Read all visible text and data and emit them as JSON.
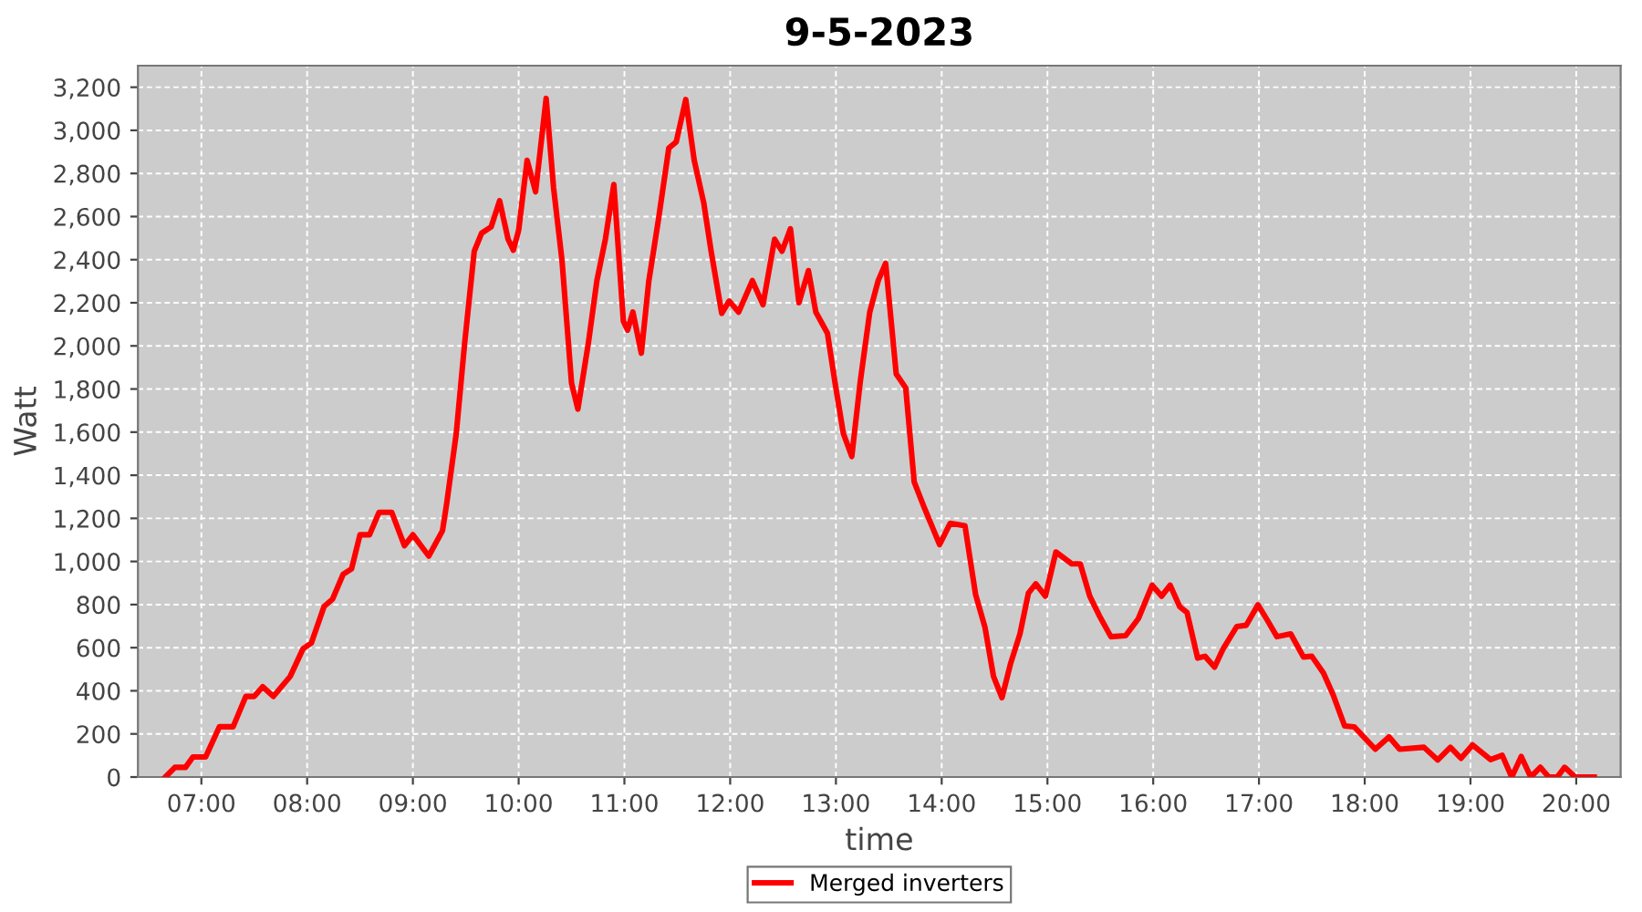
{
  "chart_data": {
    "type": "line",
    "title": "9-5-2023",
    "xlabel": "time",
    "ylabel": "Watt",
    "xlim": [
      6.4,
      20.42
    ],
    "ylim": [
      0,
      3300
    ],
    "xticks": [
      {
        "value": 7,
        "label": "07:00"
      },
      {
        "value": 8,
        "label": "08:00"
      },
      {
        "value": 9,
        "label": "09:00"
      },
      {
        "value": 10,
        "label": "10:00"
      },
      {
        "value": 11,
        "label": "11:00"
      },
      {
        "value": 12,
        "label": "12:00"
      },
      {
        "value": 13,
        "label": "13:00"
      },
      {
        "value": 14,
        "label": "14:00"
      },
      {
        "value": 15,
        "label": "15:00"
      },
      {
        "value": 16,
        "label": "16:00"
      },
      {
        "value": 17,
        "label": "17:00"
      },
      {
        "value": 18,
        "label": "18:00"
      },
      {
        "value": 19,
        "label": "19:00"
      },
      {
        "value": 20,
        "label": "20:00"
      }
    ],
    "yticks": [
      0,
      200,
      400,
      600,
      800,
      {
        "value": 1000,
        "label": "1,000"
      },
      {
        "value": 1200,
        "label": "1,200"
      },
      {
        "value": 1400,
        "label": "1,400"
      },
      {
        "value": 1600,
        "label": "1,600"
      },
      {
        "value": 1800,
        "label": "1,800"
      },
      {
        "value": 2000,
        "label": "2,000"
      },
      {
        "value": 2200,
        "label": "2,200"
      },
      {
        "value": 2400,
        "label": "2,400"
      },
      {
        "value": 2600,
        "label": "2,600"
      },
      {
        "value": 2800,
        "label": "2,800"
      },
      {
        "value": 3000,
        "label": "3,000"
      },
      {
        "value": 3200,
        "label": "3,200"
      }
    ],
    "grid": true,
    "legend": "bottom",
    "line_style": "solid",
    "series": [
      {
        "name": "Merged inverters",
        "color": "#ff0000",
        "x": [
          6.66,
          6.75,
          6.85,
          6.92,
          7.04,
          7.17,
          7.3,
          7.42,
          7.5,
          7.58,
          7.68,
          7.84,
          7.96,
          8.04,
          8.16,
          8.24,
          8.34,
          8.42,
          8.5,
          8.59,
          8.68,
          8.8,
          8.92,
          9.0,
          9.15,
          9.28,
          9.32,
          9.41,
          9.49,
          9.58,
          9.65,
          9.74,
          9.82,
          9.9,
          9.95,
          10.0,
          10.08,
          10.16,
          10.26,
          10.33,
          10.41,
          10.5,
          10.56,
          10.66,
          10.74,
          10.82,
          10.9,
          10.99,
          11.03,
          11.08,
          11.16,
          11.23,
          11.32,
          11.42,
          11.49,
          11.58,
          11.66,
          11.75,
          11.82,
          11.92,
          11.99,
          12.08,
          12.21,
          12.31,
          12.42,
          12.49,
          12.57,
          12.65,
          12.74,
          12.81,
          12.92,
          12.99,
          13.07,
          13.15,
          13.23,
          13.32,
          13.4,
          13.47,
          13.57,
          13.66,
          13.74,
          13.83,
          13.98,
          14.08,
          14.22,
          14.32,
          14.41,
          14.49,
          14.57,
          14.65,
          14.74,
          14.82,
          14.89,
          14.98,
          15.08,
          15.23,
          15.31,
          15.4,
          15.49,
          15.6,
          15.74,
          15.86,
          15.99,
          16.08,
          16.16,
          16.25,
          16.32,
          16.42,
          16.49,
          16.58,
          16.66,
          16.79,
          16.88,
          16.99,
          17.07,
          17.17,
          17.3,
          17.42,
          17.5,
          17.61,
          17.7,
          17.81,
          17.9,
          18.1,
          18.23,
          18.33,
          18.56,
          18.69,
          18.81,
          18.91,
          19.02,
          19.19,
          19.3,
          19.39,
          19.48,
          19.57,
          19.66,
          19.74,
          19.82,
          19.89,
          19.99,
          20.17
        ],
        "values": [
          0,
          45,
          45,
          93,
          93,
          233,
          233,
          374,
          374,
          419,
          374,
          467,
          594,
          622,
          791,
          825,
          940,
          966,
          1124,
          1124,
          1228,
          1228,
          1073,
          1124,
          1025,
          1143,
          1270,
          1594,
          2016,
          2439,
          2523,
          2552,
          2673,
          2495,
          2444,
          2537,
          2861,
          2715,
          3148,
          2734,
          2396,
          1828,
          1707,
          2016,
          2303,
          2495,
          2749,
          2115,
          2073,
          2157,
          1966,
          2298,
          2580,
          2918,
          2946,
          3143,
          2861,
          2664,
          2439,
          2151,
          2208,
          2157,
          2303,
          2191,
          2495,
          2439,
          2543,
          2200,
          2349,
          2157,
          2058,
          1834,
          1594,
          1487,
          1834,
          2157,
          2303,
          2383,
          1870,
          1805,
          1369,
          1256,
          1078,
          1177,
          1166,
          848,
          693,
          467,
          368,
          524,
          664,
          853,
          896,
          839,
          1044,
          989,
          989,
          839,
          749,
          651,
          656,
          735,
          890,
          839,
          890,
          791,
          763,
          552,
          560,
          510,
          594,
          698,
          704,
          799,
          735,
          651,
          664,
          557,
          560,
          482,
          383,
          237,
          233,
          129,
          186,
          129,
          138,
          79,
          138,
          87,
          149,
          81,
          101,
          0,
          95,
          0,
          45,
          0,
          0,
          45,
          0,
          0
        ]
      }
    ]
  }
}
